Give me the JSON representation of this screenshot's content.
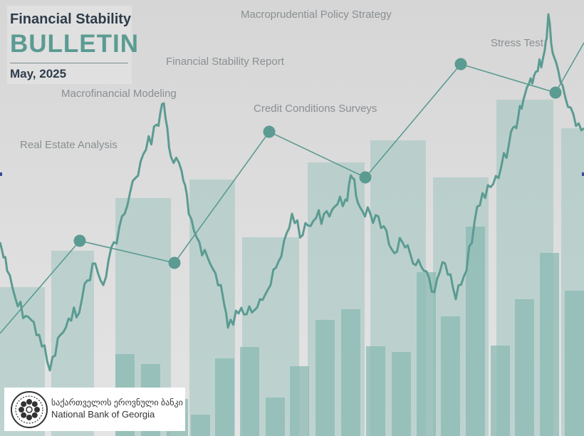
{
  "header": {
    "title_line1": "Financial Stability",
    "title_line2": "BULLETIN",
    "date": "May, 2025"
  },
  "topics": [
    "Macroprudential Policy Strategy",
    "Financial Stability Report",
    "Macrofinancial Modeling",
    "Credit Conditions Surveys",
    "Real Estate Analysis",
    "Stress Test"
  ],
  "logo": {
    "name_georgian": "საქართველოს ეროვნული ბანკი",
    "name_english": "National Bank of Georgia",
    "emblem_icon": "nbg-emblem-icon"
  },
  "colors": {
    "background": "#d9d9d9",
    "accent_teal": "#5b9b92",
    "title_dark": "#2f3d4a"
  }
}
